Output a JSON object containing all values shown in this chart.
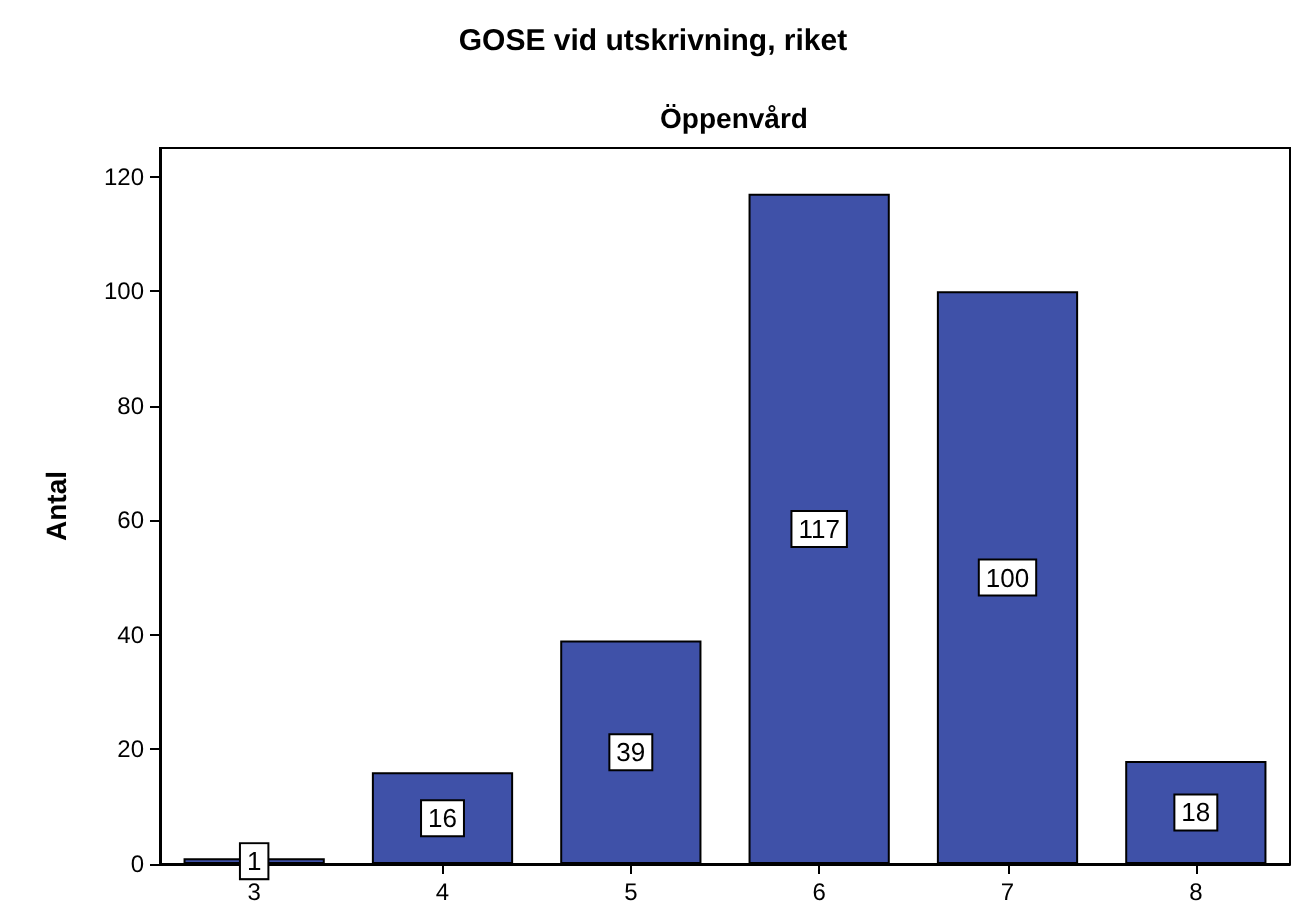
{
  "chart_data": {
    "type": "bar",
    "title": "GOSE vid utskrivning, riket",
    "subtitle": "Öppenvård",
    "ylabel": "Antal",
    "categories": [
      "3",
      "4",
      "5",
      "6",
      "7",
      "8"
    ],
    "values": [
      1,
      16,
      39,
      117,
      100,
      18
    ],
    "color": "#3f51a8",
    "ylim": [
      0,
      125
    ],
    "yticks": [
      0,
      20,
      40,
      60,
      80,
      100,
      120
    ],
    "grid": false,
    "data_labels": true
  }
}
